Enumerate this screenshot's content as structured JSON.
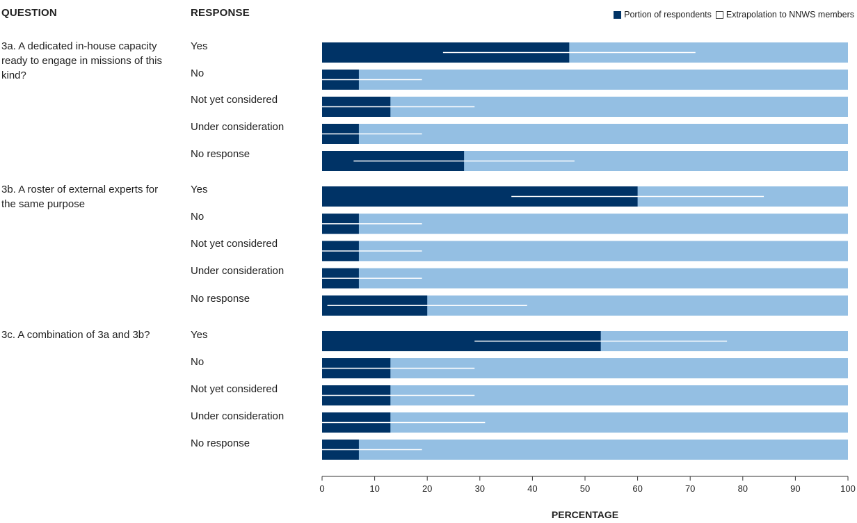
{
  "headers": {
    "question": "QUESTION",
    "response": "RESPONSE"
  },
  "legend": [
    {
      "label": "Portion of respondents",
      "swatch": "dark"
    },
    {
      "label": "Extrapolation to NNWS members",
      "swatch": "outline"
    }
  ],
  "colors": {
    "portion": "#003366",
    "background_bar": "#94bfe3",
    "extrapolation_line": "#ffffff",
    "axis": "#333333"
  },
  "chart_data": {
    "type": "bar",
    "orientation": "horizontal",
    "xlabel": "PERCENTAGE",
    "xlim": [
      0,
      100
    ],
    "xticks": [
      0,
      10,
      20,
      30,
      40,
      50,
      60,
      70,
      80,
      90,
      100
    ],
    "groups": [
      {
        "question": "3a. A dedicated in-house capacity ready to engage in missions of this kind?",
        "responses": [
          {
            "label": "Yes",
            "portion": 47,
            "extrapolation": [
              23,
              71
            ]
          },
          {
            "label": "No",
            "portion": 7,
            "extrapolation": [
              0,
              19
            ]
          },
          {
            "label": "Not yet considered",
            "portion": 13,
            "extrapolation": [
              0,
              29
            ]
          },
          {
            "label": "Under consideration",
            "portion": 7,
            "extrapolation": [
              0,
              19
            ]
          },
          {
            "label": "No response",
            "portion": 27,
            "extrapolation": [
              6,
              48
            ]
          }
        ]
      },
      {
        "question": "3b. A roster of external experts for the same purpose",
        "responses": [
          {
            "label": "Yes",
            "portion": 60,
            "extrapolation": [
              36,
              84
            ]
          },
          {
            "label": "No",
            "portion": 7,
            "extrapolation": [
              0,
              19
            ]
          },
          {
            "label": "Not yet considered",
            "portion": 7,
            "extrapolation": [
              0,
              19
            ]
          },
          {
            "label": "Under consideration",
            "portion": 7,
            "extrapolation": [
              0,
              19
            ]
          },
          {
            "label": "No response",
            "portion": 20,
            "extrapolation": [
              1,
              39
            ]
          }
        ]
      },
      {
        "question": "3c. A combination of 3a and 3b?",
        "responses": [
          {
            "label": "Yes",
            "portion": 53,
            "extrapolation": [
              29,
              77
            ]
          },
          {
            "label": "No",
            "portion": 13,
            "extrapolation": [
              0,
              29
            ]
          },
          {
            "label": "Not yet considered",
            "portion": 13,
            "extrapolation": [
              0,
              29
            ]
          },
          {
            "label": "Under consideration",
            "portion": 13,
            "extrapolation": [
              0,
              31
            ]
          },
          {
            "label": "No response",
            "portion": 7,
            "extrapolation": [
              0,
              19
            ]
          }
        ]
      }
    ]
  }
}
